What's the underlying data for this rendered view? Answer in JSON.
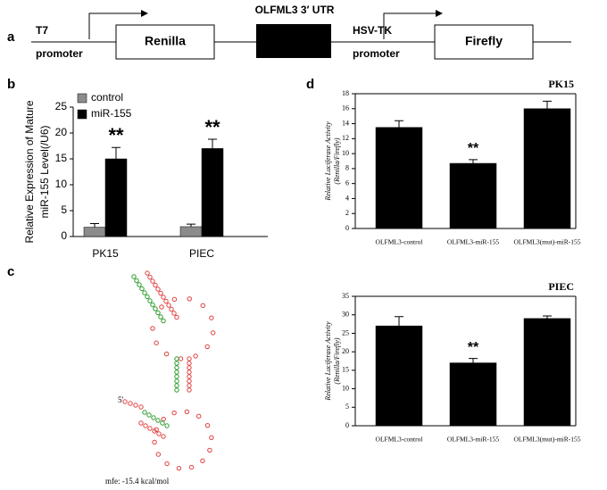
{
  "diagram": {
    "label": "a",
    "t7": "T7",
    "promoter_left": "promoter",
    "renilla": "Renilla",
    "utr": "OLFML3 3′ UTR",
    "hsvtk": "HSV-TK",
    "promoter_right": "promoter",
    "firefly": "Firefly"
  },
  "structure": {
    "label": "c",
    "five_prime": "5'",
    "mfe": "mfe: -15.4 kcal/mol"
  },
  "panel_d_label": "d",
  "chart_data": [
    {
      "type": "bar",
      "label": "b",
      "ylabel": [
        "Relative Expression of Mature",
        "miR-155 Level(/U6)"
      ],
      "categories": [
        "PK15",
        "PIEC"
      ],
      "series": [
        {
          "name": "control",
          "color": "#8c8c8c",
          "values": [
            1.8,
            1.9
          ],
          "errors": [
            0.7,
            0.5
          ]
        },
        {
          "name": "miR-155",
          "color": "#000000",
          "values": [
            15,
            17
          ],
          "errors": [
            2.2,
            1.8
          ],
          "annotations": [
            "**",
            "**"
          ]
        }
      ],
      "ylim": [
        0,
        25
      ],
      "yticks": [
        0,
        5,
        10,
        15,
        20,
        25
      ]
    },
    {
      "type": "bar",
      "title": "PK15",
      "ylabel": [
        "Relative Luciferase Activity",
        "(Renilla/Firefly)"
      ],
      "categories": [
        "OLFML3-control",
        "OLFML3-miR-155",
        "OLFML3(mut)-miR-155"
      ],
      "series": [
        {
          "color": "#000000",
          "values": [
            13.5,
            8.7,
            16
          ],
          "errors": [
            0.9,
            0.5,
            1.0
          ],
          "annotations": [
            null,
            "**",
            null
          ]
        }
      ],
      "ylim": [
        0,
        18
      ],
      "yticks": [
        0,
        2,
        4,
        6,
        8,
        10,
        12,
        14,
        16,
        18
      ]
    },
    {
      "type": "bar",
      "title": "PIEC",
      "ylabel": [
        "Relative Luciferase Activity",
        "(Renilla/Firefly)"
      ],
      "categories": [
        "OLFML3-control",
        "OLFML3-miR-155",
        "OLFML3(mut)-miR-155"
      ],
      "series": [
        {
          "color": "#000000",
          "values": [
            27,
            17,
            29
          ],
          "errors": [
            2.5,
            1.2,
            0.7
          ],
          "annotations": [
            null,
            "**",
            null
          ]
        }
      ],
      "ylim": [
        0,
        35
      ],
      "yticks": [
        0,
        5,
        10,
        15,
        20,
        25,
        30,
        35
      ]
    }
  ]
}
